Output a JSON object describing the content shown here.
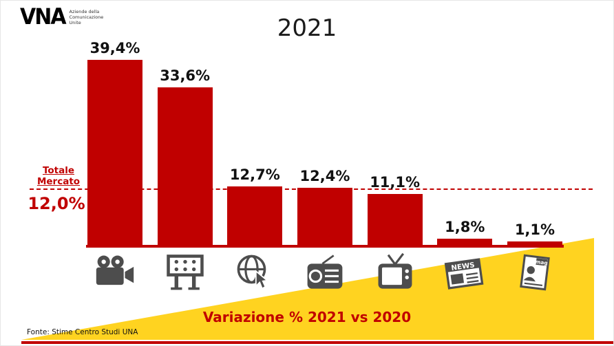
{
  "header": {
    "logo_mark": "VNA",
    "tagline": [
      "Aziende della",
      "Comunicazione",
      "Unite"
    ],
    "title": "2021"
  },
  "reference": {
    "line1": "Totale",
    "line2": "Mercato",
    "value": "12,0%"
  },
  "footer": {
    "annotation": "Variazione % 2021 vs 2020",
    "source": "Fonte: Stime Centro Studi UNA"
  },
  "colors": {
    "bar_red": "#C00000",
    "accent_yellow": "#FFD320",
    "icon_gray": "#4D4D4D",
    "label_black": "#111111"
  },
  "chart_data": {
    "type": "bar",
    "title": "2021",
    "categories": [
      "cinema",
      "out-of-home",
      "internet",
      "radio",
      "tv",
      "quotidiani",
      "periodici"
    ],
    "icons": [
      "movie-camera-icon",
      "billboard-icon",
      "globe-cursor-icon",
      "radio-icon",
      "tv-icon",
      "newspaper-icon",
      "magazine-icon"
    ],
    "values": [
      39.4,
      33.6,
      12.7,
      12.4,
      11.1,
      1.8,
      1.1
    ],
    "value_labels": [
      "39,4%",
      "33,6%",
      "12,7%",
      "12,4%",
      "11,1%",
      "1,8%",
      "1,1%"
    ],
    "xlabel": "",
    "ylabel": "",
    "ylim": [
      0,
      42
    ],
    "grid": false,
    "legend": false,
    "reference_line": {
      "value": 12.0,
      "label": "Totale Mercato",
      "value_label": "12,0%"
    },
    "annotation": "Variazione % 2021 vs 2020",
    "source": "Fonte: Stime Centro Studi UNA"
  }
}
